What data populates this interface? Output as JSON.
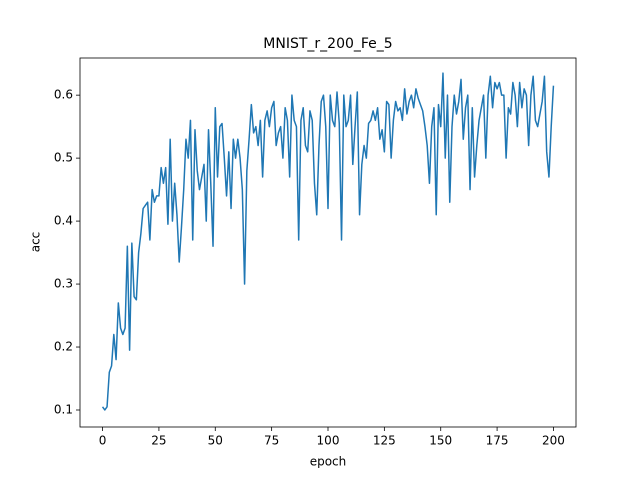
{
  "chart_data": {
    "type": "line",
    "title": "MNIST_r_200_Fe_5",
    "x_label": "epoch",
    "y_label": "acc",
    "x": [
      0,
      1,
      2,
      3,
      4,
      5,
      6,
      7,
      8,
      9,
      10,
      11,
      12,
      13,
      14,
      15,
      16,
      17,
      18,
      19,
      20,
      21,
      22,
      23,
      24,
      25,
      26,
      27,
      28,
      29,
      30,
      31,
      32,
      33,
      34,
      35,
      36,
      37,
      38,
      39,
      40,
      41,
      42,
      43,
      44,
      45,
      46,
      47,
      48,
      49,
      50,
      51,
      52,
      53,
      54,
      55,
      56,
      57,
      58,
      59,
      60,
      61,
      62,
      63,
      64,
      65,
      66,
      67,
      68,
      69,
      70,
      71,
      72,
      73,
      74,
      75,
      76,
      77,
      78,
      79,
      80,
      81,
      82,
      83,
      84,
      85,
      86,
      87,
      88,
      89,
      90,
      91,
      92,
      93,
      94,
      95,
      96,
      97,
      98,
      99,
      100,
      101,
      102,
      103,
      104,
      105,
      106,
      107,
      108,
      109,
      110,
      111,
      112,
      113,
      114,
      115,
      116,
      117,
      118,
      119,
      120,
      121,
      122,
      123,
      124,
      125,
      126,
      127,
      128,
      129,
      130,
      131,
      132,
      133,
      134,
      135,
      136,
      137,
      138,
      139,
      140,
      141,
      142,
      143,
      144,
      145,
      146,
      147,
      148,
      149,
      150,
      151,
      152,
      153,
      154,
      155,
      156,
      157,
      158,
      159,
      160,
      161,
      162,
      163,
      164,
      165,
      166,
      167,
      168,
      169,
      170,
      171,
      172,
      173,
      174,
      175,
      176,
      177,
      178,
      179,
      180,
      181,
      182,
      183,
      184,
      185,
      186,
      187,
      188,
      189,
      190,
      191,
      192,
      193,
      194,
      195,
      196,
      197,
      198,
      199,
      200
    ],
    "series": [
      {
        "name": "acc",
        "color": "#1f77b4",
        "values": [
          0.105,
          0.1,
          0.105,
          0.16,
          0.17,
          0.22,
          0.18,
          0.27,
          0.23,
          0.22,
          0.23,
          0.36,
          0.195,
          0.365,
          0.28,
          0.275,
          0.35,
          0.38,
          0.42,
          0.425,
          0.43,
          0.37,
          0.45,
          0.43,
          0.44,
          0.44,
          0.485,
          0.46,
          0.485,
          0.395,
          0.53,
          0.4,
          0.46,
          0.41,
          0.335,
          0.39,
          0.45,
          0.53,
          0.5,
          0.56,
          0.37,
          0.545,
          0.48,
          0.45,
          0.47,
          0.49,
          0.4,
          0.545,
          0.46,
          0.36,
          0.58,
          0.47,
          0.55,
          0.555,
          0.5,
          0.44,
          0.51,
          0.42,
          0.53,
          0.5,
          0.53,
          0.5,
          0.45,
          0.3,
          0.48,
          0.53,
          0.585,
          0.54,
          0.55,
          0.52,
          0.56,
          0.47,
          0.56,
          0.575,
          0.55,
          0.58,
          0.59,
          0.52,
          0.54,
          0.55,
          0.5,
          0.58,
          0.56,
          0.47,
          0.6,
          0.56,
          0.55,
          0.37,
          0.56,
          0.58,
          0.52,
          0.51,
          0.575,
          0.56,
          0.46,
          0.41,
          0.52,
          0.59,
          0.6,
          0.55,
          0.42,
          0.6,
          0.56,
          0.55,
          0.605,
          0.555,
          0.37,
          0.6,
          0.55,
          0.56,
          0.6,
          0.49,
          0.55,
          0.605,
          0.41,
          0.49,
          0.52,
          0.5,
          0.555,
          0.56,
          0.575,
          0.56,
          0.58,
          0.53,
          0.545,
          0.51,
          0.59,
          0.585,
          0.5,
          0.56,
          0.59,
          0.575,
          0.58,
          0.56,
          0.61,
          0.57,
          0.59,
          0.6,
          0.58,
          0.61,
          0.595,
          0.585,
          0.575,
          0.55,
          0.52,
          0.46,
          0.55,
          0.58,
          0.41,
          0.585,
          0.55,
          0.635,
          0.5,
          0.6,
          0.43,
          0.55,
          0.6,
          0.57,
          0.59,
          0.625,
          0.53,
          0.58,
          0.6,
          0.45,
          0.58,
          0.47,
          0.52,
          0.56,
          0.58,
          0.6,
          0.5,
          0.6,
          0.63,
          0.58,
          0.62,
          0.61,
          0.62,
          0.6,
          0.6,
          0.5,
          0.58,
          0.57,
          0.62,
          0.6,
          0.55,
          0.62,
          0.58,
          0.61,
          0.6,
          0.52,
          0.6,
          0.63,
          0.56,
          0.55,
          0.57,
          0.59,
          0.63,
          0.51,
          0.47,
          0.55,
          0.615
        ]
      }
    ],
    "xlim": [
      -10,
      210
    ],
    "ylim": [
      0.073,
      0.659
    ],
    "xticks": [
      0,
      25,
      50,
      75,
      100,
      125,
      150,
      175,
      200
    ],
    "yticks": [
      0.1,
      0.2,
      0.3,
      0.4,
      0.5,
      0.6
    ]
  }
}
